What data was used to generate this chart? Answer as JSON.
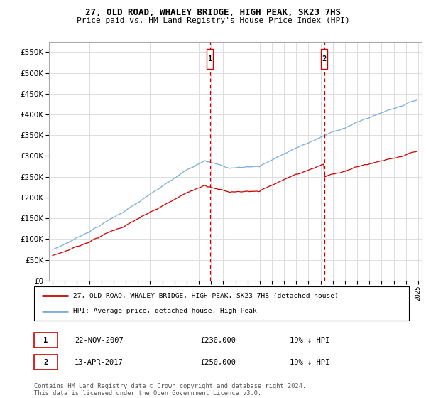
{
  "title": "27, OLD ROAD, WHALEY BRIDGE, HIGH PEAK, SK23 7HS",
  "subtitle": "Price paid vs. HM Land Registry's House Price Index (HPI)",
  "legend_line1": "27, OLD ROAD, WHALEY BRIDGE, HIGH PEAK, SK23 7HS (detached house)",
  "legend_line2": "HPI: Average price, detached house, High Peak",
  "footer": "Contains HM Land Registry data © Crown copyright and database right 2024.\nThis data is licensed under the Open Government Licence v3.0.",
  "table": [
    [
      "1",
      "22-NOV-2007",
      "£230,000",
      "19% ↓ HPI"
    ],
    [
      "2",
      "13-APR-2017",
      "£250,000",
      "19% ↓ HPI"
    ]
  ],
  "t1_year": 2007.917,
  "t2_year": 2017.292,
  "t1_price": 230000,
  "t2_price": 250000,
  "hpi_discount": 0.81,
  "ylim": [
    0,
    575000
  ],
  "xlim_start": 1994.7,
  "xlim_end": 2025.3,
  "price_color": "#cc0000",
  "hpi_color": "#7aaddb",
  "vline_color": "#cc0000",
  "grid_color": "#dddddd",
  "background_color": "#ffffff",
  "title_fontsize": 9.0,
  "subtitle_fontsize": 8.0
}
